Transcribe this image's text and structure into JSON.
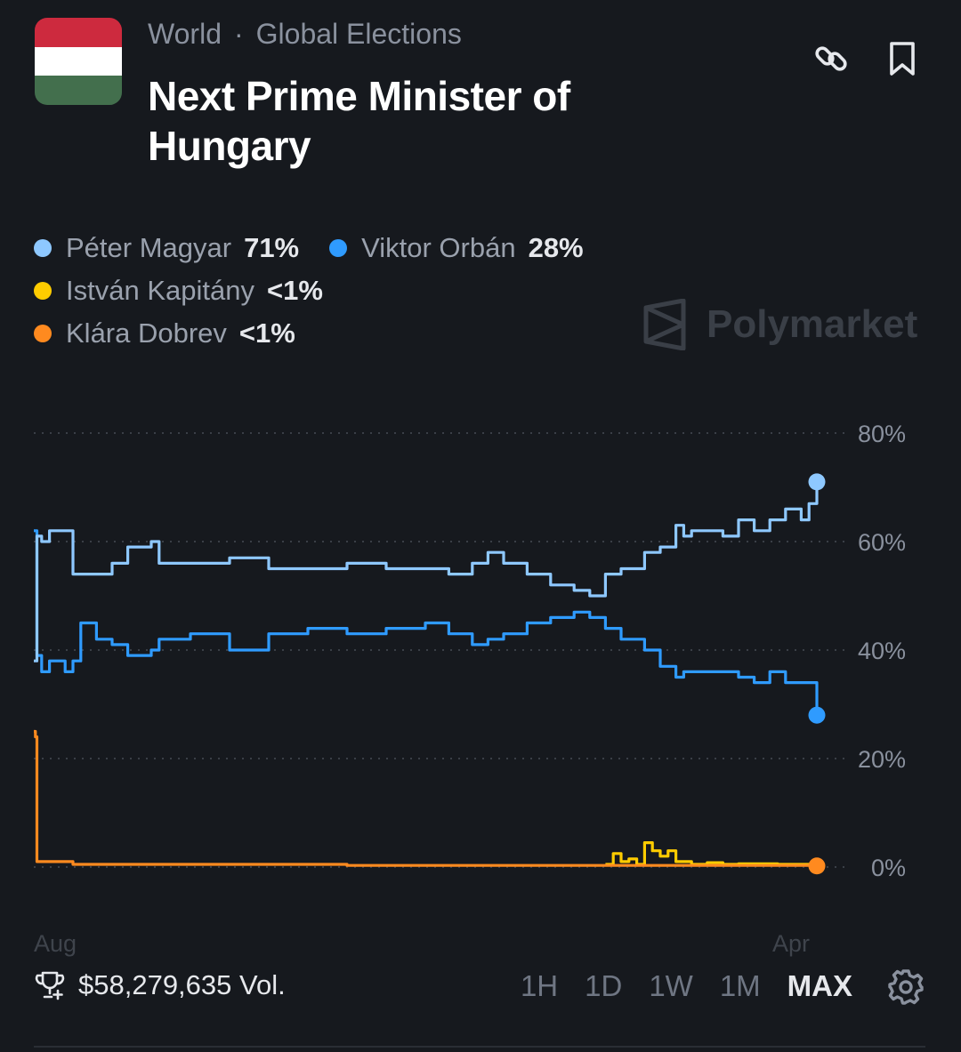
{
  "header": {
    "category": "World",
    "subcategory": "Global Elections",
    "separator": "·",
    "title": "Next Prime Minister of Hungary",
    "flag_colors": [
      "#cd2a3e",
      "#ffffff",
      "#436f4d"
    ]
  },
  "legend": [
    {
      "name": "Péter Magyar",
      "value": "71%",
      "color": "#8ec8ff"
    },
    {
      "name": "Viktor Orbán",
      "value": "28%",
      "color": "#2f9bff"
    },
    {
      "name": "István Kapitány",
      "value": "<1%",
      "color": "#ffcc00"
    },
    {
      "name": "Klára Dobrev",
      "value": "<1%",
      "color": "#ff8a1f"
    }
  ],
  "watermark": "Polymarket",
  "footer": {
    "volume": "$58,279,635 Vol.",
    "ranges": [
      "1H",
      "1D",
      "1W",
      "1M",
      "MAX"
    ],
    "active_range": "MAX"
  },
  "chart_data": {
    "type": "line",
    "ylim": [
      0,
      80
    ],
    "yticks": [
      0,
      20,
      40,
      60,
      80
    ],
    "ytick_labels": [
      "0%",
      "20%",
      "40%",
      "60%",
      "80%"
    ],
    "x_label_start": "Aug",
    "x_label_end": "Apr",
    "x_range": [
      0,
      100
    ],
    "grid": true,
    "series": [
      {
        "name": "Péter Magyar",
        "color": "#8ec8ff",
        "x": [
          0,
          0.4,
          1,
          2,
          4,
          5,
          8,
          10,
          12,
          15,
          16,
          20,
          25,
          30,
          35,
          40,
          45,
          50,
          53,
          56,
          58,
          60,
          63,
          66,
          69,
          71,
          73,
          75,
          78,
          80,
          82,
          83,
          84,
          86,
          88,
          90,
          92,
          94,
          96,
          98,
          99,
          100
        ],
        "y": [
          38,
          61,
          60,
          62,
          62,
          54,
          54,
          56,
          59,
          60,
          56,
          56,
          57,
          55,
          55,
          56,
          55,
          55,
          54,
          56,
          58,
          56,
          54,
          52,
          51,
          50,
          54,
          55,
          58,
          59,
          63,
          61,
          62,
          62,
          61,
          64,
          62,
          64,
          66,
          64,
          67,
          71
        ]
      },
      {
        "name": "Viktor Orbán",
        "color": "#2f9bff",
        "x": [
          0,
          0.4,
          1,
          2,
          4,
          5,
          6,
          8,
          10,
          12,
          15,
          16,
          20,
          25,
          30,
          35,
          40,
          45,
          50,
          53,
          56,
          58,
          60,
          63,
          66,
          69,
          71,
          73,
          75,
          78,
          80,
          82,
          83,
          85,
          88,
          90,
          92,
          94,
          96,
          98,
          99,
          100
        ],
        "y": [
          62,
          39,
          36,
          38,
          36,
          38,
          45,
          42,
          41,
          39,
          40,
          42,
          43,
          40,
          43,
          44,
          43,
          44,
          45,
          43,
          41,
          42,
          43,
          45,
          46,
          47,
          46,
          44,
          42,
          40,
          37,
          35,
          36,
          36,
          36,
          35,
          34,
          36,
          34,
          34,
          34,
          28
        ]
      },
      {
        "name": "István Kapitány",
        "color": "#ffcc00",
        "x": [
          73,
          74,
          75,
          76,
          77,
          78,
          79,
          80,
          81,
          82,
          83,
          84,
          86,
          88,
          90,
          95,
          100
        ],
        "y": [
          0.5,
          2.5,
          1,
          1.5,
          0.5,
          4.5,
          3,
          2,
          3,
          1,
          1,
          0.5,
          0.8,
          0.5,
          0.6,
          0.5,
          0.5
        ]
      },
      {
        "name": "Klára Dobrev",
        "color": "#ff8a1f",
        "x": [
          0,
          0.2,
          0.4,
          1,
          5,
          10,
          20,
          30,
          40,
          50,
          60,
          70,
          80,
          90,
          100
        ],
        "y": [
          25,
          24,
          1,
          1,
          0.5,
          0.5,
          0.5,
          0.5,
          0.3,
          0.3,
          0.3,
          0.3,
          0.3,
          0.3,
          0.2
        ]
      }
    ]
  }
}
